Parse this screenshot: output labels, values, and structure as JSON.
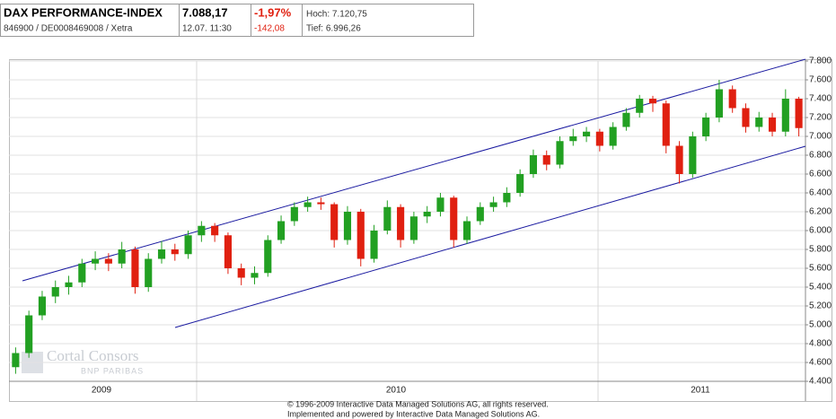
{
  "header": {
    "title": "DAX PERFORMANCE-INDEX",
    "subtitle": "846900 / DE0008469008 / Xetra",
    "price": "7.088,17",
    "time": "12.07. 11:30",
    "change_pct": "-1,97%",
    "change": "-142,08",
    "high": "Hoch: 7.120,75",
    "low": "Tief: 6.996,26"
  },
  "chart_data": {
    "type": "candlestick",
    "open": [
      4550,
      4700,
      5100,
      5300,
      5400,
      5450,
      5650,
      5700,
      5650,
      5800,
      5400,
      5700,
      5800,
      5750,
      5950,
      6050,
      5950,
      5600,
      5500,
      5550,
      5900,
      6100,
      6250,
      6300,
      6280,
      5900,
      6200,
      5700,
      6000,
      6250,
      5900,
      6150,
      6200,
      6350,
      5900,
      6100,
      6250,
      6300,
      6400,
      6600,
      6800,
      6700,
      6950,
      7000,
      7050,
      6900,
      7100,
      7250,
      7400,
      7350,
      6900,
      6600,
      7000,
      7200,
      7500,
      7300,
      7100,
      7200,
      7050,
      7400
    ],
    "high": [
      4760,
      5150,
      5360,
      5470,
      5520,
      5700,
      5780,
      5760,
      5880,
      5830,
      5760,
      5890,
      5860,
      6000,
      6100,
      6080,
      5980,
      5650,
      5620,
      5950,
      6160,
      6300,
      6360,
      6350,
      6300,
      6260,
      6230,
      6060,
      6320,
      6280,
      6200,
      6260,
      6400,
      6370,
      6150,
      6300,
      6360,
      6460,
      6650,
      6860,
      6850,
      7000,
      7080,
      7100,
      7080,
      7150,
      7300,
      7440,
      7430,
      7380,
      6950,
      7050,
      7250,
      7600,
      7540,
      7350,
      7260,
      7250,
      7500,
      7420
    ],
    "low": [
      4480,
      4650,
      5050,
      5230,
      5320,
      5400,
      5580,
      5570,
      5600,
      5330,
      5350,
      5650,
      5680,
      5700,
      5880,
      5880,
      5540,
      5420,
      5430,
      5510,
      5860,
      6050,
      6200,
      6220,
      5820,
      5850,
      5620,
      5660,
      5960,
      5820,
      5860,
      6080,
      6150,
      5820,
      5860,
      6060,
      6200,
      6250,
      6360,
      6560,
      6640,
      6660,
      6900,
      6940,
      6840,
      6860,
      7060,
      7200,
      7260,
      6820,
      6500,
      6560,
      6950,
      7150,
      7250,
      7040,
      7050,
      7000,
      7000,
      7000
    ],
    "close": [
      4700,
      5100,
      5300,
      5400,
      5450,
      5650,
      5700,
      5650,
      5800,
      5400,
      5700,
      5800,
      5750,
      5950,
      6050,
      5950,
      5600,
      5500,
      5550,
      5900,
      6100,
      6250,
      6300,
      6280,
      5900,
      6200,
      5700,
      6000,
      6250,
      5900,
      6150,
      6200,
      6350,
      5900,
      6100,
      6250,
      6300,
      6400,
      6600,
      6800,
      6700,
      6950,
      7000,
      7050,
      6900,
      7100,
      7250,
      7400,
      7350,
      6900,
      6600,
      7000,
      7200,
      7500,
      7300,
      7100,
      7200,
      7050,
      7400,
      7088
    ],
    "up_color": "#22a022",
    "down_color": "#e02010",
    "channel_color": "#1a1aa0",
    "ylim": [
      4400,
      7800
    ],
    "yticks": [
      {
        "value": 4400,
        "label": "4.400"
      },
      {
        "value": 4600,
        "label": "4.600"
      },
      {
        "value": 4800,
        "label": "4.800"
      },
      {
        "value": 5000,
        "label": "5.000"
      },
      {
        "value": 5200,
        "label": "5.200"
      },
      {
        "value": 5400,
        "label": "5.400"
      },
      {
        "value": 5600,
        "label": "5.600"
      },
      {
        "value": 5800,
        "label": "5.800"
      },
      {
        "value": 6000,
        "label": "6.000"
      },
      {
        "value": 6200,
        "label": "6.200"
      },
      {
        "value": 6400,
        "label": "6.400"
      },
      {
        "value": 6600,
        "label": "6.600"
      },
      {
        "value": 6800,
        "label": "6.800"
      },
      {
        "value": 7000,
        "label": "7.000"
      },
      {
        "value": 7200,
        "label": "7.200"
      },
      {
        "value": 7400,
        "label": "7.400"
      },
      {
        "value": 7600,
        "label": "7.600"
      },
      {
        "value": 7800,
        "label": "7.800"
      }
    ],
    "x_labels": [
      "2009",
      "2010",
      "2011"
    ],
    "grid": true,
    "watermark": [
      "Cortal Consors",
      "BNP PARIBAS"
    ]
  },
  "footer": [
    "© 1996-2009 Interactive Data Managed Solutions AG, all rights reserved.",
    "Implemented and powered by Interactive Data Managed Solutions AG."
  ]
}
